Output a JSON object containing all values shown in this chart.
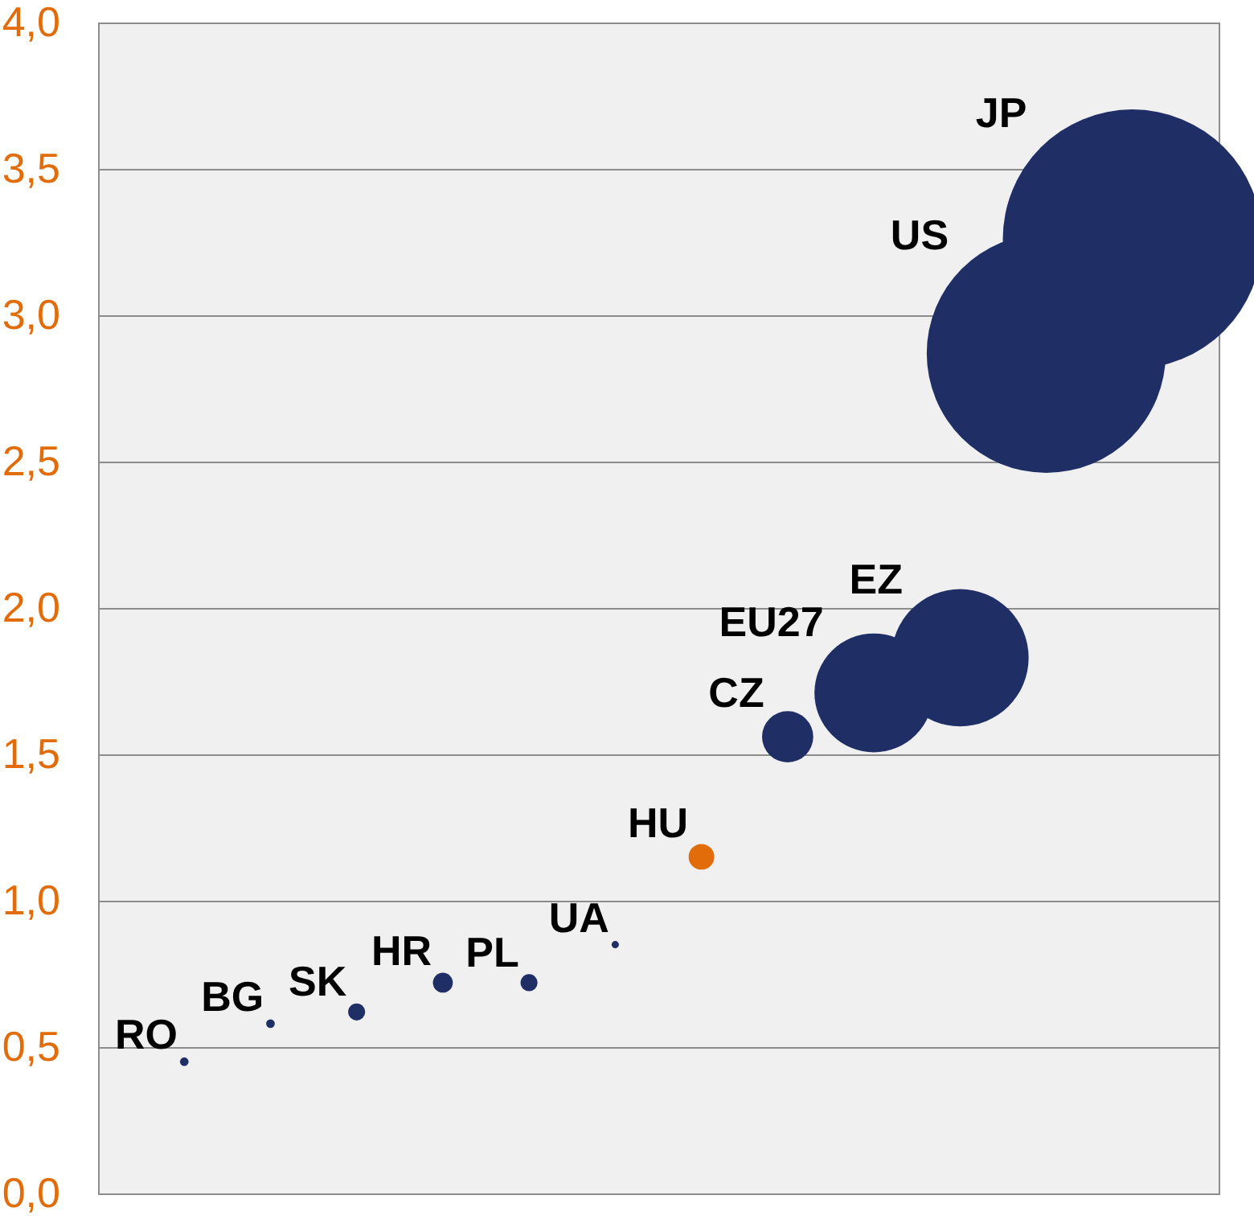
{
  "chart_data": {
    "type": "bubble",
    "categories": [
      null,
      null,
      null,
      null,
      null,
      null,
      null,
      null,
      null,
      null,
      null,
      null
    ],
    "ylim": [
      0,
      4
    ],
    "yticks": [
      {
        "value": 0,
        "label": "0,0"
      },
      {
        "value": 0.5,
        "label": "0,5"
      },
      {
        "value": 1,
        "label": "1,0"
      },
      {
        "value": 1.5,
        "label": "1,5"
      },
      {
        "value": 2,
        "label": "2,0"
      },
      {
        "value": 2.5,
        "label": "2,5"
      },
      {
        "value": 3,
        "label": "3,0"
      },
      {
        "value": 3.5,
        "label": "3,5"
      },
      {
        "value": 4,
        "label": "4,0"
      }
    ],
    "grid": "y",
    "legend": false,
    "series": [
      {
        "name": "RO",
        "color": "#1f2f66",
        "values": [
          0.45,
          null,
          null,
          null,
          null,
          null,
          null,
          null,
          null,
          null,
          null,
          null
        ],
        "sizes": [
          0.0011,
          null,
          null,
          null,
          null,
          null,
          null,
          null,
          null,
          null,
          null,
          null
        ]
      },
      {
        "name": "BG",
        "color": "#1f2f66",
        "values": [
          null,
          0.58,
          null,
          null,
          null,
          null,
          null,
          null,
          null,
          null,
          null,
          null
        ],
        "sizes": [
          null,
          0.0011,
          null,
          null,
          null,
          null,
          null,
          null,
          null,
          null,
          null,
          null
        ]
      },
      {
        "name": "SK",
        "color": "#1f2f66",
        "values": [
          null,
          null,
          0.62,
          null,
          null,
          null,
          null,
          null,
          null,
          null,
          null,
          null
        ],
        "sizes": [
          null,
          null,
          0.0043,
          null,
          null,
          null,
          null,
          null,
          null,
          null,
          null,
          null
        ]
      },
      {
        "name": "HR",
        "color": "#1f2f66",
        "values": [
          null,
          null,
          null,
          0.72,
          null,
          null,
          null,
          null,
          null,
          null,
          null,
          null
        ],
        "sizes": [
          null,
          null,
          null,
          0.0059,
          null,
          null,
          null,
          null,
          null,
          null,
          null,
          null
        ]
      },
      {
        "name": "PL",
        "color": "#1f2f66",
        "values": [
          null,
          null,
          null,
          null,
          0.72,
          null,
          null,
          null,
          null,
          null,
          null,
          null
        ],
        "sizes": [
          null,
          null,
          null,
          null,
          0.0043,
          null,
          null,
          null,
          null,
          null,
          null,
          null
        ]
      },
      {
        "name": "UA",
        "color": "#1f2f66",
        "values": [
          null,
          null,
          null,
          null,
          null,
          0.85,
          null,
          null,
          null,
          null,
          null,
          null
        ],
        "sizes": [
          null,
          null,
          null,
          null,
          null,
          0.0008,
          null,
          null,
          null,
          null,
          null,
          null
        ]
      },
      {
        "name": "HU",
        "color": "#e36c0a",
        "values": [
          null,
          null,
          null,
          null,
          null,
          null,
          1.15,
          null,
          null,
          null,
          null,
          null
        ],
        "sizes": [
          null,
          null,
          null,
          null,
          null,
          null,
          0.0098,
          null,
          null,
          null,
          null,
          null
        ]
      },
      {
        "name": "CZ",
        "color": "#1f2f66",
        "values": [
          null,
          null,
          null,
          null,
          null,
          null,
          null,
          1.56,
          null,
          null,
          null,
          null
        ],
        "sizes": [
          null,
          null,
          null,
          null,
          null,
          null,
          null,
          0.039,
          null,
          null,
          null,
          null
        ]
      },
      {
        "name": "EU27",
        "color": "#1f2f66",
        "values": [
          null,
          null,
          null,
          null,
          null,
          null,
          null,
          null,
          1.71,
          null,
          null,
          null
        ],
        "sizes": [
          null,
          null,
          null,
          null,
          null,
          null,
          null,
          null,
          0.21,
          null,
          null,
          null
        ]
      },
      {
        "name": "EZ",
        "color": "#1f2f66",
        "values": [
          null,
          null,
          null,
          null,
          null,
          null,
          null,
          null,
          null,
          1.83,
          null,
          null
        ],
        "sizes": [
          null,
          null,
          null,
          null,
          null,
          null,
          null,
          null,
          null,
          0.28,
          null,
          null
        ]
      },
      {
        "name": "US",
        "color": "#1f2f66",
        "values": [
          null,
          null,
          null,
          null,
          null,
          null,
          null,
          null,
          null,
          null,
          2.87,
          null
        ],
        "sizes": [
          null,
          null,
          null,
          null,
          null,
          null,
          null,
          null,
          null,
          null,
          0.85,
          null
        ]
      },
      {
        "name": "JP",
        "color": "#1f2f66",
        "values": [
          null,
          null,
          null,
          null,
          null,
          null,
          null,
          null,
          null,
          null,
          null,
          3.26
        ],
        "sizes": [
          null,
          null,
          null,
          null,
          null,
          null,
          null,
          null,
          null,
          null,
          null,
          1
        ]
      }
    ]
  }
}
